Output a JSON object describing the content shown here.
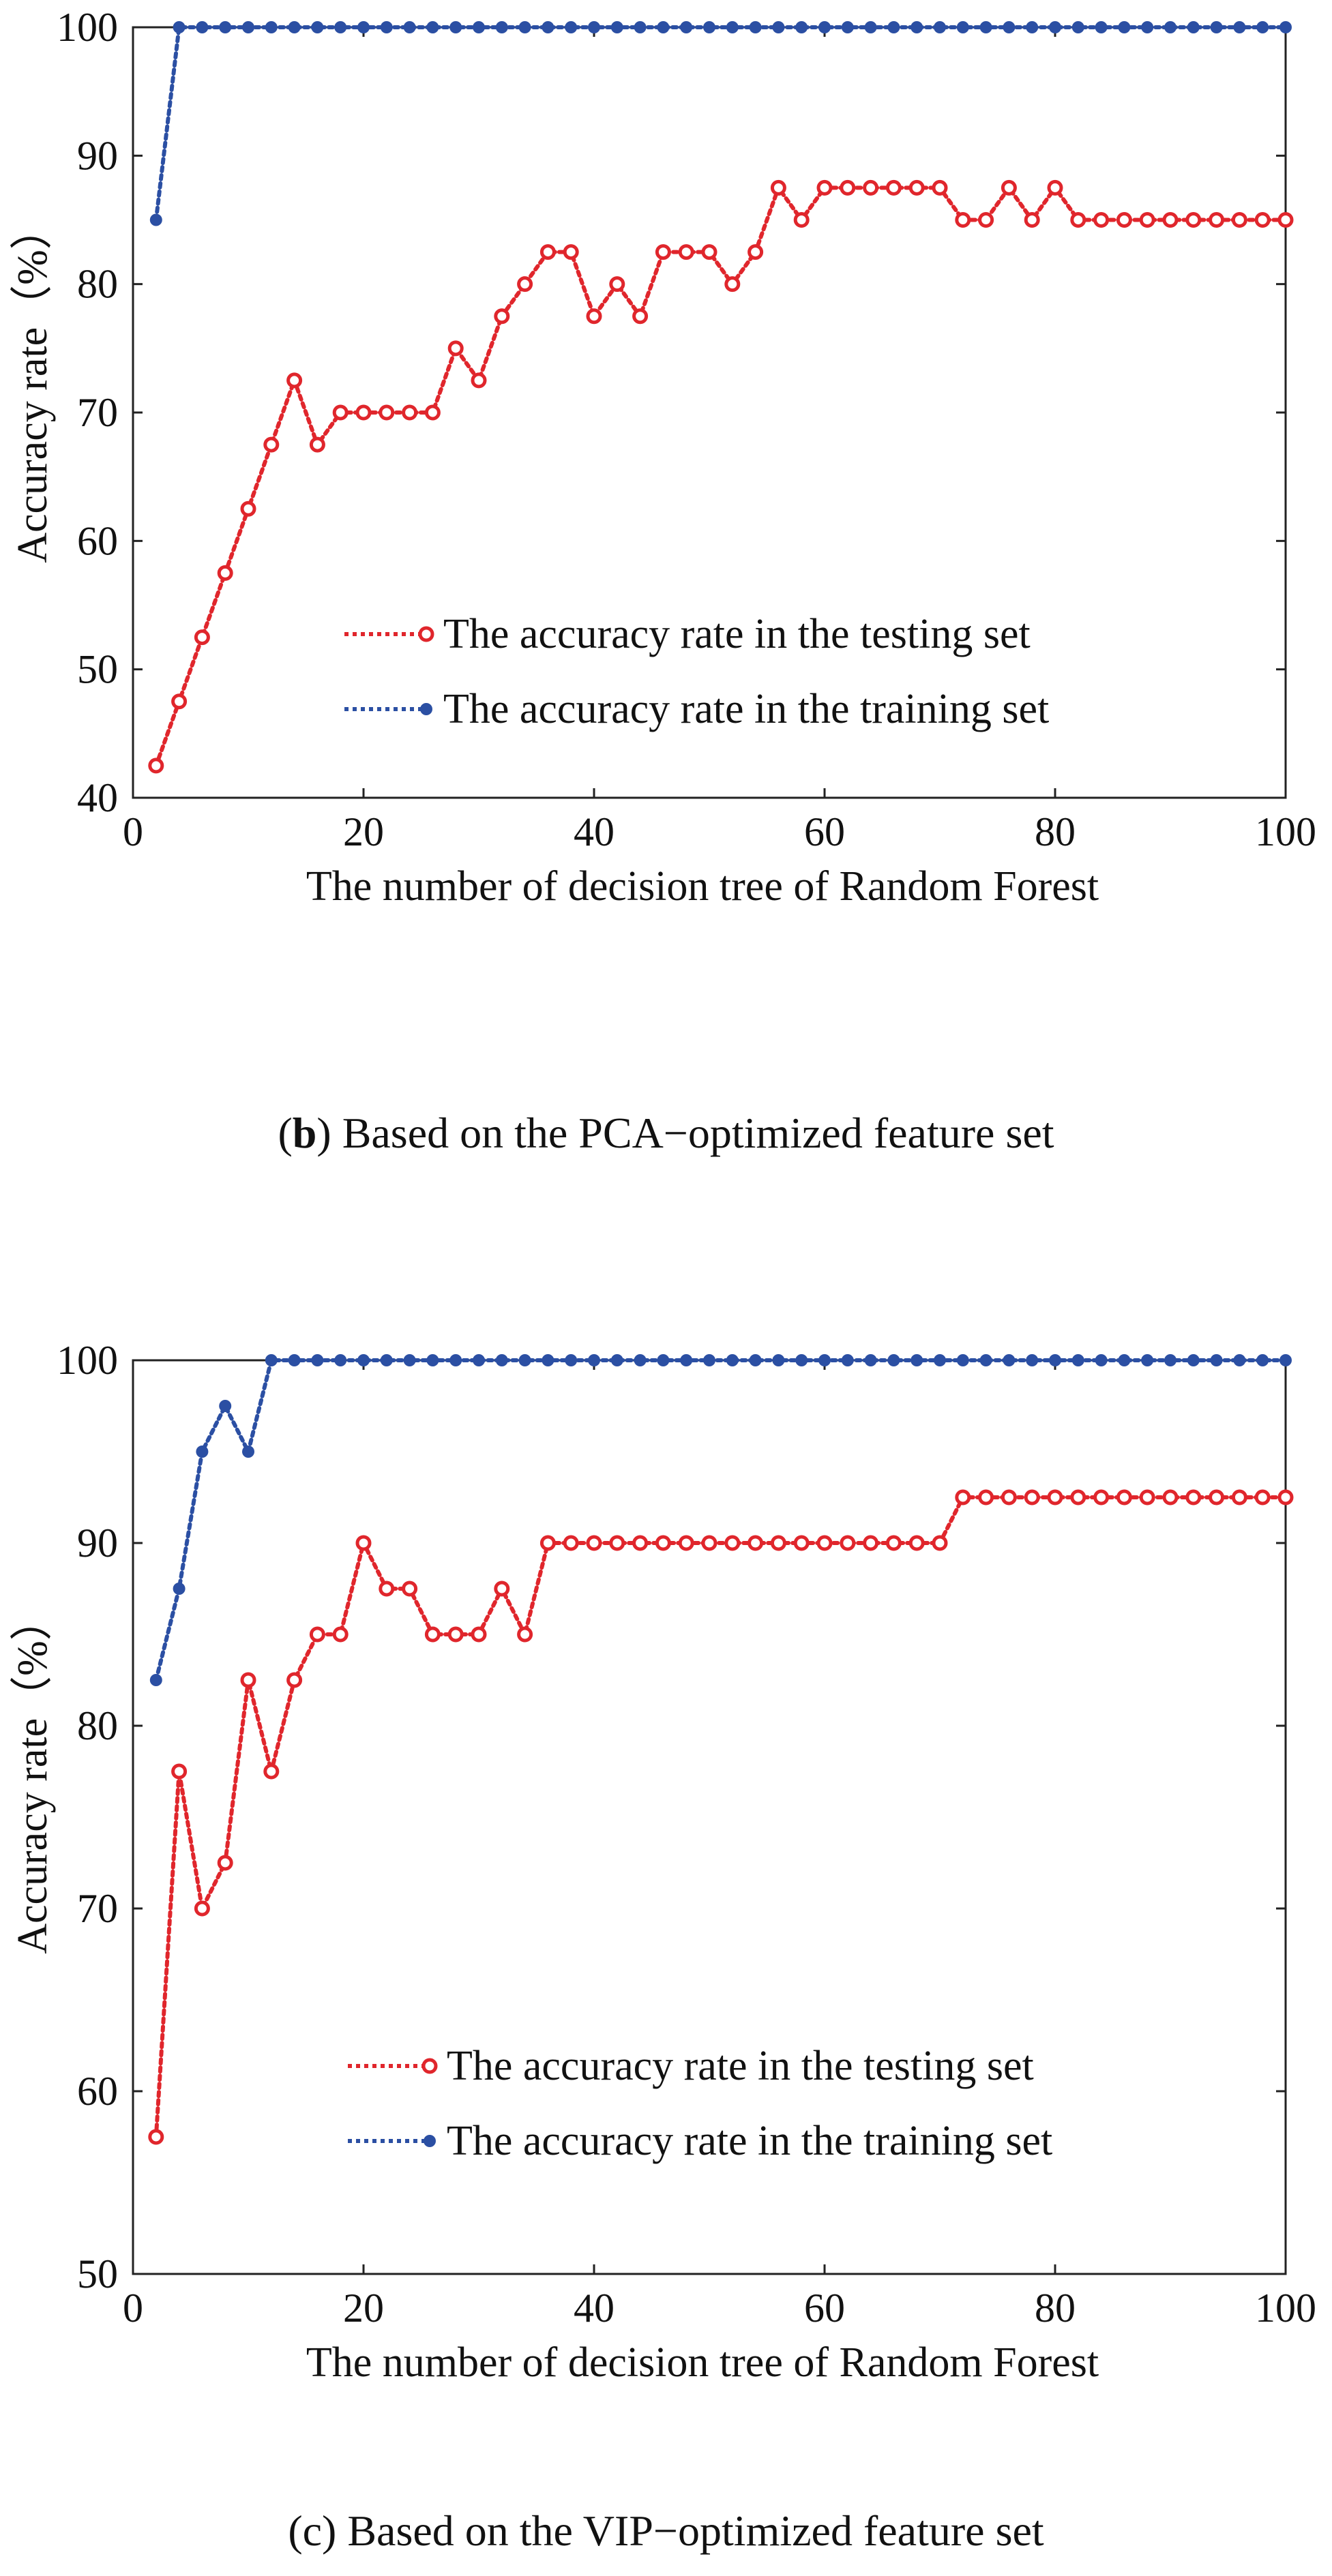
{
  "chart_data": [
    {
      "type": "line",
      "caption_letter": "b",
      "caption_text": "Based on the PCA−optimized feature set",
      "xlabel": "The number of decision tree of Random Forest",
      "ylabel": "Accuracy rate（%）",
      "xlim": [
        0,
        100
      ],
      "ylim": [
        40,
        100
      ],
      "xticks": [
        0,
        20,
        40,
        60,
        80,
        100
      ],
      "yticks": [
        40,
        50,
        60,
        70,
        80,
        90,
        100
      ],
      "grid": false,
      "legend_position": "lower-right",
      "x": [
        2,
        4,
        6,
        8,
        10,
        12,
        14,
        16,
        18,
        20,
        22,
        24,
        26,
        28,
        30,
        32,
        34,
        36,
        38,
        40,
        42,
        44,
        46,
        48,
        50,
        52,
        54,
        56,
        58,
        60,
        62,
        64,
        66,
        68,
        70,
        72,
        74,
        76,
        78,
        80,
        82,
        84,
        86,
        88,
        90,
        92,
        94,
        96,
        98,
        100
      ],
      "series": [
        {
          "name": "The accuracy rate in the testing set",
          "color": "#e0262c",
          "marker": "open-circle",
          "values": [
            42.5,
            47.5,
            52.5,
            57.5,
            62.5,
            67.5,
            72.5,
            67.5,
            70,
            70,
            70,
            70,
            70,
            75,
            72.5,
            77.5,
            80,
            82.5,
            82.5,
            77.5,
            80,
            77.5,
            82.5,
            82.5,
            82.5,
            80,
            82.5,
            87.5,
            85,
            87.5,
            87.5,
            87.5,
            87.5,
            87.5,
            87.5,
            85,
            85,
            87.5,
            85,
            87.5,
            85,
            85,
            85,
            85,
            85,
            85,
            85,
            85,
            85,
            85
          ]
        },
        {
          "name": "The accuracy rate in the training set",
          "color": "#2b4fa3",
          "marker": "filled-dot",
          "values": [
            85,
            100,
            100,
            100,
            100,
            100,
            100,
            100,
            100,
            100,
            100,
            100,
            100,
            100,
            100,
            100,
            100,
            100,
            100,
            100,
            100,
            100,
            100,
            100,
            100,
            100,
            100,
            100,
            100,
            100,
            100,
            100,
            100,
            100,
            100,
            100,
            100,
            100,
            100,
            100,
            100,
            100,
            100,
            100,
            100,
            100,
            100,
            100,
            100,
            100
          ]
        }
      ]
    },
    {
      "type": "line",
      "caption_letter": "c",
      "caption_text": "Based on the VIP−optimized feature set",
      "xlabel": "The number of decision tree of Random Forest",
      "ylabel": "Accuracy rate（%）",
      "xlim": [
        0,
        100
      ],
      "ylim": [
        50,
        100
      ],
      "xticks": [
        0,
        20,
        40,
        60,
        80,
        100
      ],
      "yticks": [
        50,
        60,
        70,
        80,
        90,
        100
      ],
      "grid": false,
      "legend_position": "lower-right",
      "x": [
        2,
        4,
        6,
        8,
        10,
        12,
        14,
        16,
        18,
        20,
        22,
        24,
        26,
        28,
        30,
        32,
        34,
        36,
        38,
        40,
        42,
        44,
        46,
        48,
        50,
        52,
        54,
        56,
        58,
        60,
        62,
        64,
        66,
        68,
        70,
        72,
        74,
        76,
        78,
        80,
        82,
        84,
        86,
        88,
        90,
        92,
        94,
        96,
        98,
        100
      ],
      "series": [
        {
          "name": "The accuracy rate in the testing set",
          "color": "#e0262c",
          "marker": "open-circle",
          "values": [
            57.5,
            77.5,
            70,
            72.5,
            82.5,
            77.5,
            82.5,
            85,
            85,
            90,
            87.5,
            87.5,
            85,
            85,
            85,
            87.5,
            85,
            90,
            90,
            90,
            90,
            90,
            90,
            90,
            90,
            90,
            90,
            90,
            90,
            90,
            90,
            90,
            90,
            90,
            90,
            92.5,
            92.5,
            92.5,
            92.5,
            92.5,
            92.5,
            92.5,
            92.5,
            92.5,
            92.5,
            92.5,
            92.5,
            92.5,
            92.5,
            92.5
          ]
        },
        {
          "name": "The accuracy rate in the training set",
          "color": "#2b4fa3",
          "marker": "filled-dot",
          "values": [
            82.5,
            87.5,
            95,
            97.5,
            95,
            100,
            100,
            100,
            100,
            100,
            100,
            100,
            100,
            100,
            100,
            100,
            100,
            100,
            100,
            100,
            100,
            100,
            100,
            100,
            100,
            100,
            100,
            100,
            100,
            100,
            100,
            100,
            100,
            100,
            100,
            100,
            100,
            100,
            100,
            100,
            100,
            100,
            100,
            100,
            100,
            100,
            100,
            100,
            100,
            100
          ]
        }
      ]
    }
  ]
}
